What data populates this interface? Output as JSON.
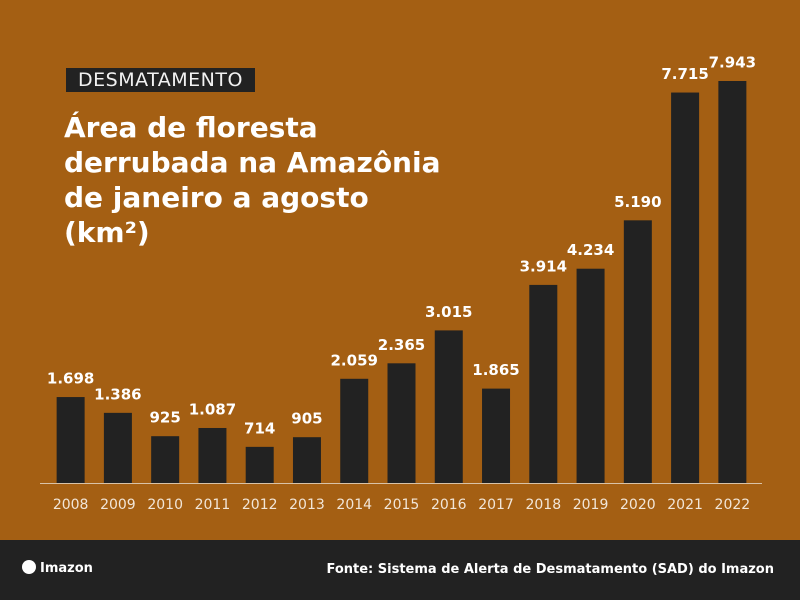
{
  "chart_data": {
    "type": "bar",
    "tag": "DESMATAMENTO",
    "title": "Área de floresta derrubada na Amazônia de janeiro a agosto (km²)",
    "categories": [
      "2008",
      "2009",
      "2010",
      "2011",
      "2012",
      "2013",
      "2014",
      "2015",
      "2016",
      "2017",
      "2018",
      "2019",
      "2020",
      "2021",
      "2022"
    ],
    "values": [
      1698,
      1386,
      925,
      1087,
      714,
      905,
      2059,
      2365,
      3015,
      1865,
      3914,
      4234,
      5190,
      7715,
      7943
    ],
    "value_labels": [
      "1.698",
      "1.386",
      "925",
      "1.087",
      "714",
      "905",
      "2.059",
      "2.365",
      "3.015",
      "1.865",
      "3.914",
      "4.234",
      "5.190",
      "7.715",
      "7.943"
    ],
    "color": "#222222",
    "logo": "Imazon",
    "source": "Fonte: Sistema de Alerta de Desmatamento (SAD) do Imazon"
  }
}
